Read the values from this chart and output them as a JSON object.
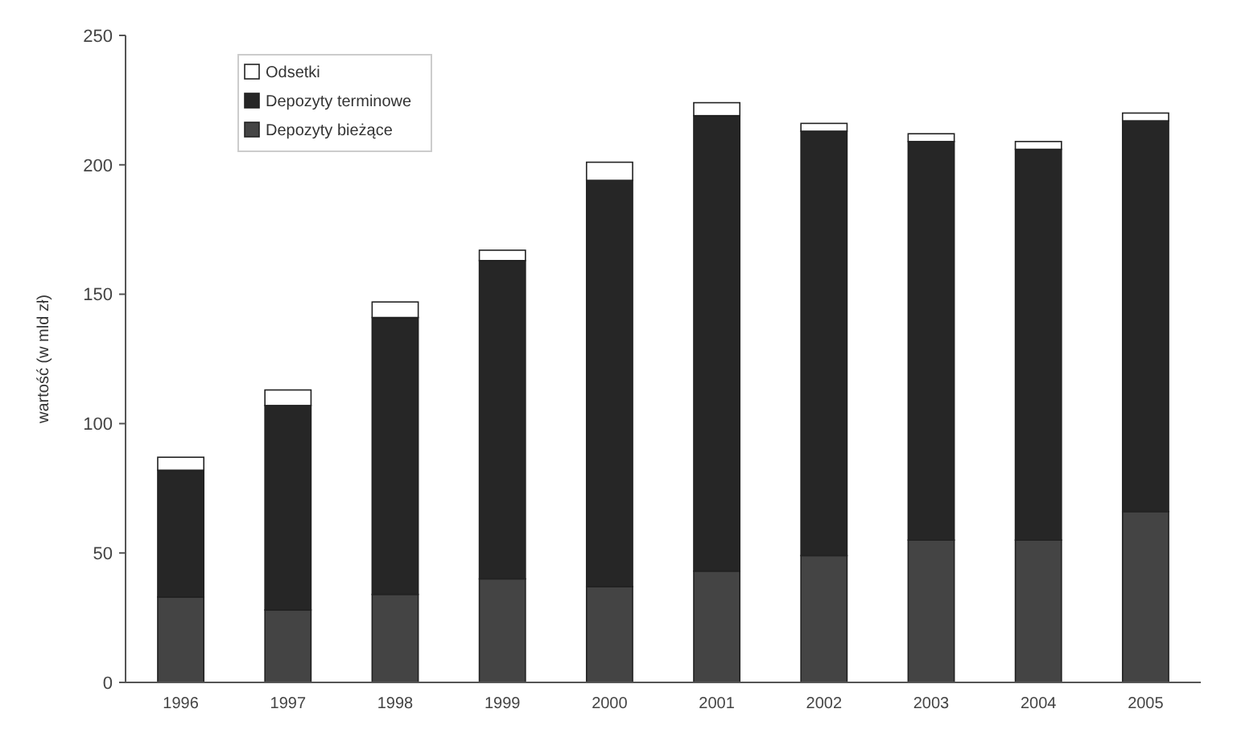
{
  "chart_data": {
    "type": "bar",
    "stacked": true,
    "ylabel": "wartość (w mld zł)",
    "categories": [
      "1996",
      "1997",
      "1998",
      "1999",
      "2000",
      "2001",
      "2002",
      "2003",
      "2004",
      "2005"
    ],
    "series": [
      {
        "name": "Depozyty bieżące",
        "color": "#444444",
        "values": [
          33,
          28,
          34,
          40,
          37,
          43,
          49,
          55,
          55,
          66
        ]
      },
      {
        "name": "Depozyty terminowe",
        "color": "#262626",
        "values": [
          49,
          79,
          107,
          123,
          157,
          176,
          164,
          154,
          151,
          151
        ]
      },
      {
        "name": "Odsetki",
        "color": "#ffffff",
        "values": [
          5,
          6,
          6,
          4,
          7,
          5,
          3,
          3,
          3,
          3
        ]
      }
    ],
    "ylim": [
      0,
      250
    ],
    "yticks": [
      0,
      50,
      100,
      150,
      200,
      250
    ],
    "legend": "top left"
  }
}
